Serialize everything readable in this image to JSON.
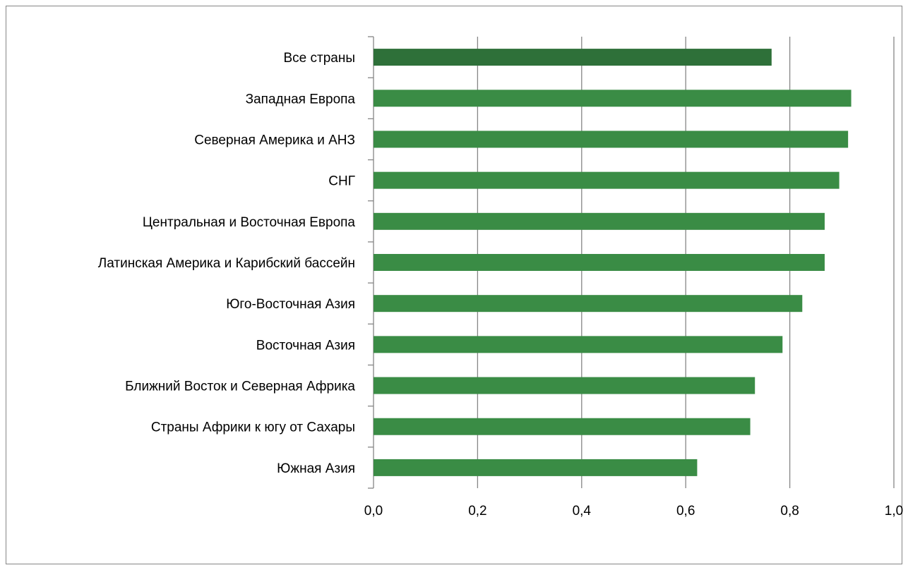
{
  "chart_data": {
    "type": "bar",
    "orientation": "horizontal",
    "title": "",
    "xlabel": "",
    "ylabel": "",
    "categories": [
      "Все страны",
      "Западная Европа",
      "Северная Америка и АНЗ",
      "СНГ",
      "Центральная и Восточная Европа",
      "Латинская Америка и Карибский бассейн",
      "Юго-Восточная Азия",
      "Восточная Азия",
      "Ближний Восток и Северная Африка",
      "Страны Африки к югу от Сахары",
      "Южная Азия"
    ],
    "values": [
      0.765,
      0.918,
      0.912,
      0.895,
      0.867,
      0.867,
      0.824,
      0.786,
      0.733,
      0.724,
      0.622
    ],
    "xlim": [
      0,
      1.0
    ],
    "xticks": [
      "0,0",
      "0,2",
      "0,4",
      "0,6",
      "0,8",
      "1,0"
    ],
    "grid": "vertical",
    "legend": "none",
    "colors": {
      "highlight": "#2E7039",
      "bar": "#3A8C45",
      "grid": "#868686",
      "frame": "#868686"
    }
  }
}
